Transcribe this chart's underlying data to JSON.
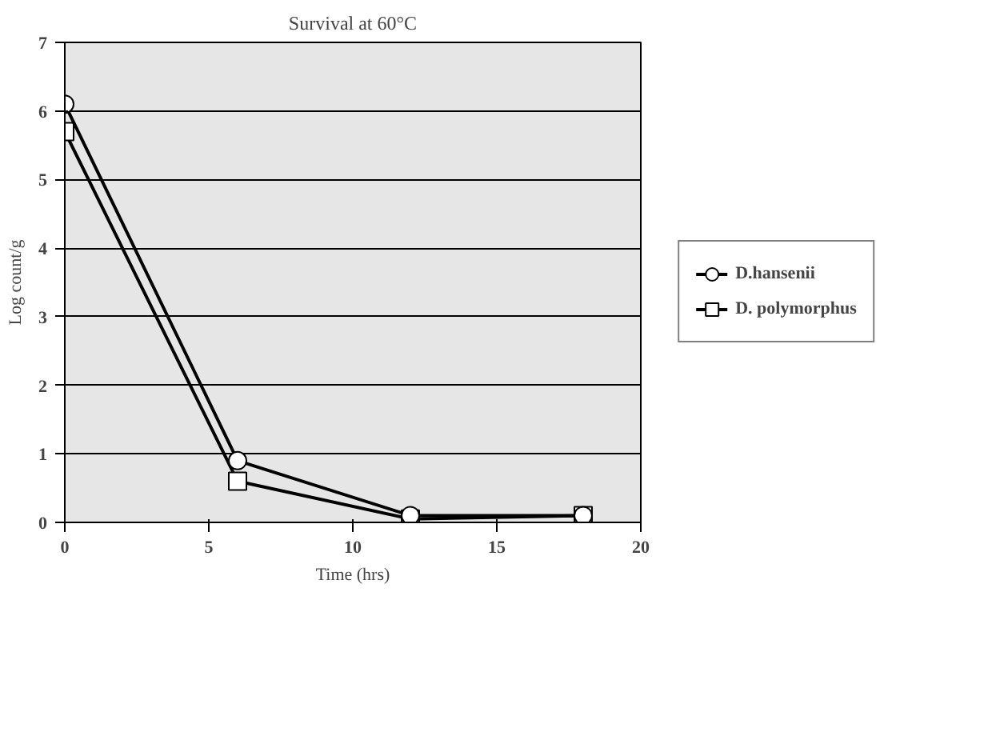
{
  "chart_data": {
    "type": "line",
    "title": "Survival at 60°C",
    "xlabel": "Time (hrs)",
    "ylabel": "Log count/g",
    "xlim": [
      0,
      20
    ],
    "xticks": [
      0,
      5,
      10,
      15,
      20
    ],
    "ylim": [
      0,
      7
    ],
    "yticks": [
      0,
      1,
      2,
      3,
      4,
      5,
      6,
      7
    ],
    "grid": "y",
    "legend": "right",
    "series": [
      {
        "name": "D.hansenii",
        "color": "#000000",
        "marker": "circle",
        "x": [
          0,
          6,
          12,
          18
        ],
        "values": [
          6.1,
          0.9,
          0.1,
          0.1
        ]
      },
      {
        "name": "D. polymorphus",
        "color": "#000000",
        "marker": "square",
        "x": [
          0,
          6,
          12,
          18
        ],
        "values": [
          5.7,
          0.6,
          0.05,
          0.1
        ]
      }
    ]
  }
}
